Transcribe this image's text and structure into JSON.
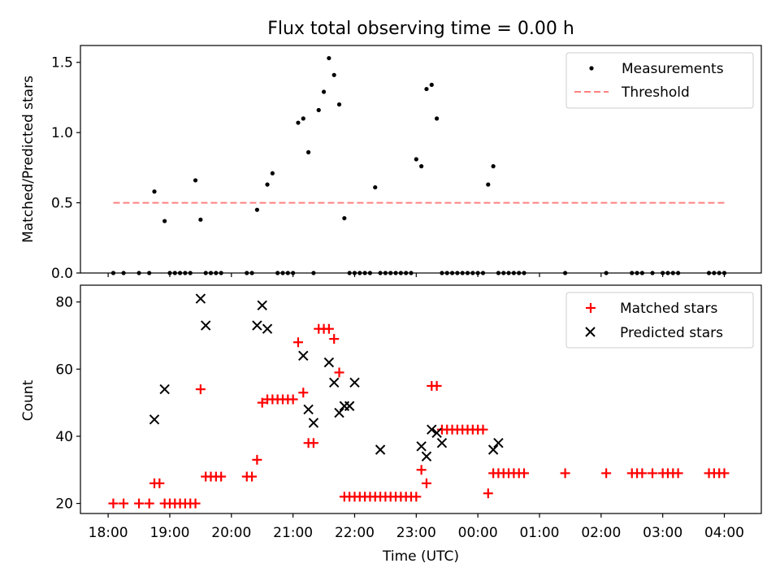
{
  "chart_data": [
    {
      "type": "scatter",
      "title": "Flux total observing time = 0.00 h",
      "xlabel": "",
      "ylabel": "Matched/Predicted stars",
      "ylim": [
        0,
        1.62
      ],
      "yticks": [
        "0.0",
        "0.5",
        "1.0",
        "1.5"
      ],
      "grid": false,
      "legend_position": "top-right",
      "x_range_hours": [
        17.55,
        28.6
      ],
      "series": [
        {
          "name": "Measurements",
          "marker": "dot",
          "color": "#000000",
          "x": [
            "18:05",
            "18:15",
            "18:30",
            "18:40",
            "18:45",
            "18:55",
            "19:00",
            "19:05",
            "19:10",
            "19:15",
            "19:20",
            "19:25",
            "19:30",
            "19:35",
            "19:40",
            "19:45",
            "19:50",
            "20:15",
            "20:20",
            "20:25",
            "20:35",
            "20:40",
            "20:45",
            "20:50",
            "20:55",
            "21:00",
            "21:05",
            "21:10",
            "21:15",
            "21:20",
            "21:25",
            "21:30",
            "21:35",
            "21:40",
            "21:45",
            "21:50",
            "21:55",
            "22:00",
            "22:05",
            "22:10",
            "22:15",
            "22:20",
            "22:25",
            "22:30",
            "22:35",
            "22:40",
            "22:45",
            "22:50",
            "22:55",
            "23:00",
            "23:05",
            "23:10",
            "23:15",
            "23:20",
            "23:25",
            "23:30",
            "23:35",
            "23:40",
            "23:45",
            "23:50",
            "23:55",
            "00:00",
            "00:05",
            "00:10",
            "00:15",
            "00:20",
            "00:25",
            "00:30",
            "00:35",
            "00:40",
            "00:45",
            "01:25",
            "02:05",
            "02:30",
            "02:35",
            "02:40",
            "02:50",
            "03:00",
            "03:05",
            "03:10",
            "03:15",
            "03:45",
            "03:50",
            "03:55",
            "04:00"
          ],
          "y": [
            0.0,
            0.0,
            0.0,
            0.0,
            0.58,
            0.37,
            0.0,
            0.0,
            0.0,
            0.0,
            0.0,
            0.66,
            0.38,
            0.0,
            0.0,
            0.0,
            0.0,
            0.0,
            0.0,
            0.45,
            0.63,
            0.71,
            0.0,
            0.0,
            0.0,
            0.0,
            1.07,
            1.1,
            0.86,
            0.0,
            1.16,
            1.29,
            1.53,
            1.41,
            1.2,
            0.39,
            0.0,
            0.0,
            0.0,
            0.0,
            0.0,
            0.61,
            0.0,
            0.0,
            0.0,
            0.0,
            0.0,
            0.0,
            0.0,
            0.81,
            0.76,
            1.31,
            1.34,
            1.1,
            0.0,
            0.0,
            0.0,
            0.0,
            0.0,
            0.0,
            0.0,
            0.0,
            0.0,
            0.63,
            0.76,
            0.0,
            0.0,
            0.0,
            0.0,
            0.0,
            0.0,
            0.0,
            0.0,
            0.0,
            0.0,
            0.0,
            0.0,
            0.0,
            0.0,
            0.0,
            0.0,
            0.0,
            0.0,
            0.0,
            0.0
          ]
        },
        {
          "name": "Threshold",
          "marker": "dashed-line",
          "color": "#ff8080",
          "x": [
            "18:05",
            "04:00"
          ],
          "y": [
            0.5,
            0.5
          ]
        }
      ]
    },
    {
      "type": "scatter",
      "title": "",
      "xlabel": "Time (UTC)",
      "ylabel": "Count",
      "ylim": [
        17,
        85
      ],
      "yticks": [
        "20",
        "40",
        "60",
        "80"
      ],
      "xticks": [
        "18:00",
        "19:00",
        "20:00",
        "21:00",
        "22:00",
        "23:00",
        "00:00",
        "01:00",
        "02:00",
        "03:00",
        "04:00"
      ],
      "grid": false,
      "legend_position": "top-right",
      "x_range_hours": [
        17.55,
        28.6
      ],
      "series": [
        {
          "name": "Matched stars",
          "marker": "plus",
          "color": "#ff0000",
          "x": [
            "18:05",
            "18:15",
            "18:30",
            "18:40",
            "18:45",
            "18:50",
            "18:55",
            "19:00",
            "19:05",
            "19:10",
            "19:15",
            "19:20",
            "19:25",
            "19:30",
            "19:35",
            "19:40",
            "19:45",
            "19:50",
            "20:15",
            "20:20",
            "20:25",
            "20:30",
            "20:35",
            "20:40",
            "20:45",
            "20:50",
            "20:55",
            "21:00",
            "21:05",
            "21:10",
            "21:15",
            "21:20",
            "21:25",
            "21:30",
            "21:35",
            "21:40",
            "21:45",
            "21:50",
            "21:55",
            "22:00",
            "22:05",
            "22:10",
            "22:15",
            "22:20",
            "22:25",
            "22:30",
            "22:35",
            "22:40",
            "22:45",
            "22:50",
            "22:55",
            "23:00",
            "23:05",
            "23:10",
            "23:15",
            "23:20",
            "23:25",
            "23:30",
            "23:35",
            "23:40",
            "23:45",
            "23:50",
            "23:55",
            "00:00",
            "00:05",
            "00:10",
            "00:15",
            "00:20",
            "00:25",
            "00:30",
            "00:35",
            "00:40",
            "00:45",
            "01:25",
            "02:05",
            "02:30",
            "02:35",
            "02:40",
            "02:50",
            "03:00",
            "03:05",
            "03:10",
            "03:15",
            "03:45",
            "03:50",
            "03:55",
            "04:00"
          ],
          "y": [
            20,
            20,
            20,
            20,
            26,
            26,
            20,
            20,
            20,
            20,
            20,
            20,
            20,
            54,
            28,
            28,
            28,
            28,
            28,
            28,
            33,
            50,
            51,
            51,
            51,
            51,
            51,
            51,
            68,
            53,
            38,
            38,
            72,
            72,
            72,
            69,
            59,
            22,
            22,
            22,
            22,
            22,
            22,
            22,
            22,
            22,
            22,
            22,
            22,
            22,
            22,
            22,
            30,
            26,
            55,
            55,
            42,
            42,
            42,
            42,
            42,
            42,
            42,
            42,
            42,
            23,
            29,
            29,
            29,
            29,
            29,
            29,
            29,
            29,
            29,
            29,
            29,
            29,
            29,
            29,
            29,
            29,
            29,
            29,
            29,
            29,
            29
          ]
        },
        {
          "name": "Predicted stars",
          "marker": "x",
          "color": "#000000",
          "x": [
            "18:45",
            "18:55",
            "19:30",
            "19:35",
            "20:25",
            "20:30",
            "20:35",
            "21:10",
            "21:15",
            "21:20",
            "21:35",
            "21:40",
            "21:45",
            "21:50",
            "21:55",
            "22:00",
            "22:25",
            "23:05",
            "23:10",
            "23:15",
            "23:20",
            "23:25",
            "00:15",
            "00:20"
          ],
          "y": [
            45,
            54,
            81,
            73,
            73,
            79,
            72,
            64,
            48,
            44,
            62,
            56,
            47,
            49,
            49,
            56,
            36,
            37,
            34,
            42,
            41,
            38,
            36,
            38
          ]
        }
      ]
    }
  ]
}
